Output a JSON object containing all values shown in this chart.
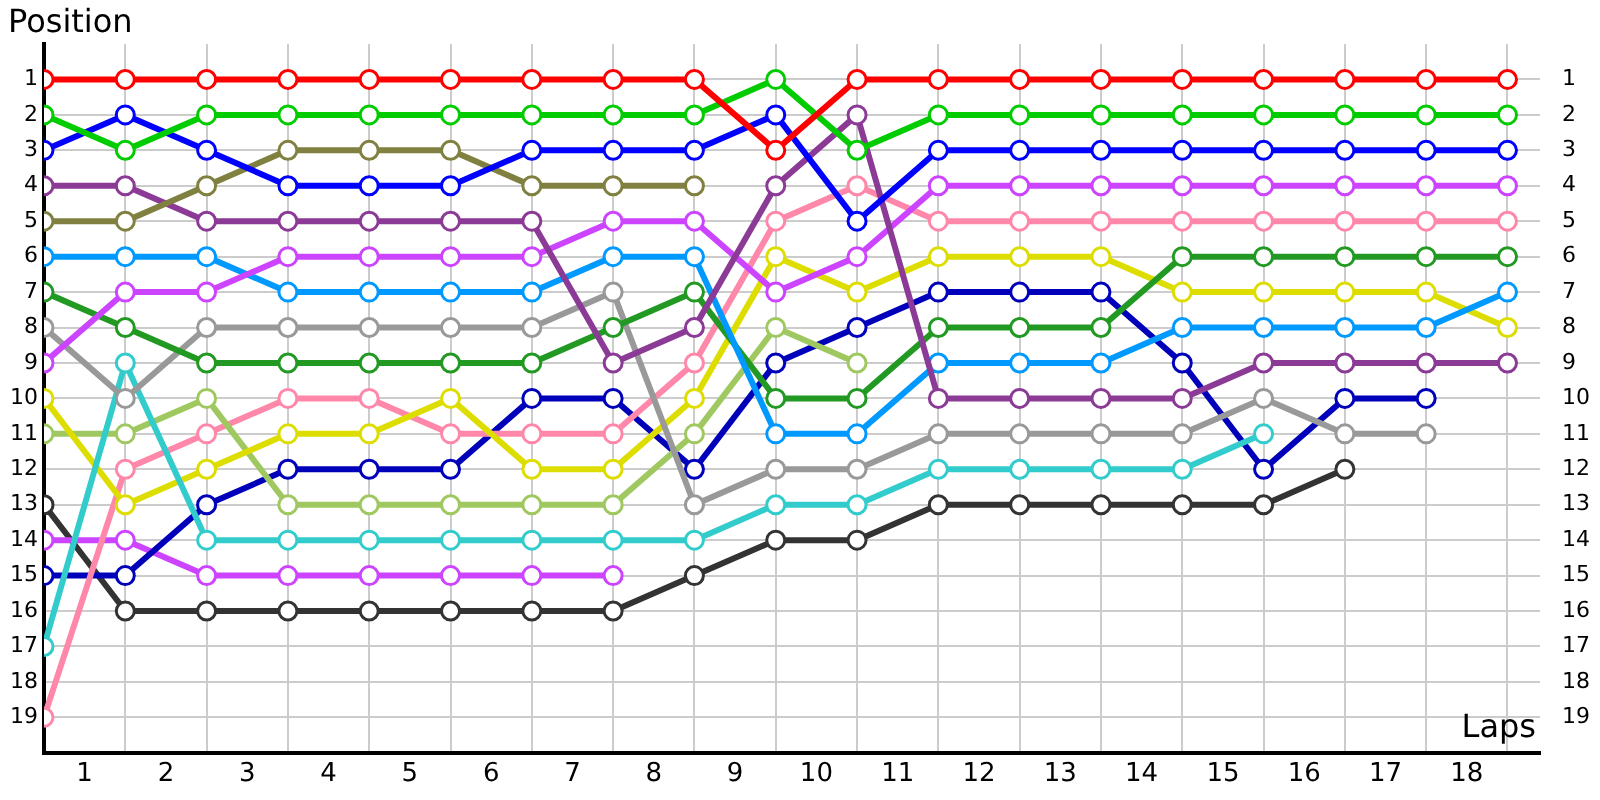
{
  "chart_data": {
    "type": "line",
    "xlabel": "Laps",
    "ylabel": "Position",
    "x": [
      0,
      1,
      2,
      3,
      4,
      5,
      6,
      7,
      8,
      9,
      10,
      11,
      12,
      13,
      14,
      15,
      16,
      17,
      18
    ],
    "xlim": [
      0,
      18.4
    ],
    "xticks": [
      {
        "value": 0,
        "label": null
      },
      {
        "value": 0.5,
        "label": "1"
      },
      {
        "value": 1,
        "label": null
      },
      {
        "value": 1.5,
        "label": "2"
      },
      {
        "value": 2,
        "label": null
      },
      {
        "value": 2.5,
        "label": "3"
      },
      {
        "value": 3,
        "label": null
      },
      {
        "value": 3.5,
        "label": "4"
      },
      {
        "value": 4,
        "label": null
      },
      {
        "value": 4.5,
        "label": "5"
      },
      {
        "value": 5,
        "label": null
      },
      {
        "value": 5.5,
        "label": "6"
      },
      {
        "value": 6,
        "label": null
      },
      {
        "value": 6.5,
        "label": "7"
      },
      {
        "value": 7,
        "label": null
      },
      {
        "value": 7.5,
        "label": "8"
      },
      {
        "value": 8,
        "label": null
      },
      {
        "value": 8.5,
        "label": "9"
      },
      {
        "value": 9,
        "label": null
      },
      {
        "value": 9.5,
        "label": "10"
      },
      {
        "value": 10,
        "label": null
      },
      {
        "value": 10.5,
        "label": "11"
      },
      {
        "value": 11,
        "label": null
      },
      {
        "value": 11.5,
        "label": "12"
      },
      {
        "value": 12,
        "label": null
      },
      {
        "value": 12.5,
        "label": "13"
      },
      {
        "value": 13,
        "label": null
      },
      {
        "value": 13.5,
        "label": "14"
      },
      {
        "value": 14,
        "label": null
      },
      {
        "value": 14.5,
        "label": "15"
      },
      {
        "value": 15,
        "label": null
      },
      {
        "value": 15.5,
        "label": "16"
      },
      {
        "value": 16,
        "label": null
      },
      {
        "value": 16.5,
        "label": "17"
      },
      {
        "value": 17,
        "label": null
      },
      {
        "value": 17.5,
        "label": "18"
      },
      {
        "value": 18,
        "label": null
      }
    ],
    "ylim": [
      20,
      0
    ],
    "yticks": [
      1,
      2,
      3,
      4,
      5,
      6,
      7,
      8,
      9,
      10,
      11,
      12,
      13,
      14,
      15,
      16,
      17,
      18,
      19
    ],
    "y2lim": [
      20,
      0
    ],
    "y2ticks": [
      1,
      2,
      3,
      4,
      5,
      6,
      7,
      8,
      9,
      10,
      11,
      12,
      13,
      14,
      15,
      16,
      17,
      18,
      19
    ],
    "grid": true,
    "marker": "circle",
    "line_style": "solid",
    "series": [
      {
        "color": "#ff0000",
        "values": [
          1,
          1,
          1,
          1,
          1,
          1,
          1,
          1,
          1,
          3,
          1,
          1,
          1,
          1,
          1,
          1,
          1,
          1,
          1
        ]
      },
      {
        "color": "#00cc00",
        "values": [
          2,
          3,
          2,
          2,
          2,
          2,
          2,
          2,
          2,
          1,
          3,
          2,
          2,
          2,
          2,
          2,
          2,
          2,
          2
        ]
      },
      {
        "color": "#0000ff",
        "values": [
          3,
          2,
          3,
          4,
          4,
          4,
          3,
          3,
          3,
          2,
          5,
          3,
          3,
          3,
          3,
          3,
          3,
          3,
          3
        ]
      },
      {
        "color": "#808040",
        "values": [
          5,
          5,
          4,
          3,
          3,
          3,
          4,
          4,
          4,
          null,
          null,
          null,
          null,
          null,
          null,
          null,
          null,
          null,
          null
        ]
      },
      {
        "color": "#8b3a96",
        "values": [
          4,
          4,
          5,
          5,
          5,
          5,
          5,
          9,
          8,
          4,
          2,
          10,
          10,
          10,
          10,
          9,
          9,
          9,
          9
        ]
      },
      {
        "color": "#cc44ff",
        "values": [
          9,
          7,
          7,
          6,
          6,
          6,
          6,
          5,
          5,
          7,
          6,
          4,
          4,
          4,
          4,
          4,
          4,
          4,
          4
        ]
      },
      {
        "color": "#0099ff",
        "values": [
          6,
          6,
          6,
          7,
          7,
          7,
          7,
          6,
          6,
          11,
          11,
          9,
          9,
          9,
          8,
          8,
          8,
          8,
          7
        ]
      },
      {
        "color": "#229922",
        "values": [
          7,
          8,
          9,
          9,
          9,
          9,
          9,
          8,
          7,
          10,
          10,
          8,
          8,
          8,
          6,
          6,
          6,
          6,
          6
        ]
      },
      {
        "color": "#999999",
        "values": [
          8,
          10,
          8,
          8,
          8,
          8,
          8,
          7,
          13,
          12,
          12,
          11,
          11,
          11,
          11,
          10,
          11,
          11,
          null
        ]
      },
      {
        "color": "#33cccc",
        "values": [
          17,
          9,
          14,
          14,
          14,
          14,
          14,
          14,
          14,
          13,
          13,
          12,
          12,
          12,
          12,
          11,
          null,
          null,
          null
        ]
      },
      {
        "color": "#dddd00",
        "values": [
          10,
          13,
          12,
          11,
          11,
          10,
          12,
          12,
          10,
          6,
          7,
          6,
          6,
          6,
          7,
          7,
          7,
          7,
          8
        ]
      },
      {
        "color": "#a0c860",
        "values": [
          11,
          11,
          10,
          13,
          13,
          13,
          13,
          13,
          11,
          8,
          9,
          null,
          null,
          null,
          null,
          null,
          null,
          null,
          null
        ]
      },
      {
        "color": "#ff88aa",
        "values": [
          19,
          12,
          11,
          10,
          10,
          11,
          11,
          11,
          9,
          5,
          4,
          5,
          5,
          5,
          5,
          5,
          5,
          5,
          5
        ]
      },
      {
        "color": "#0000bb",
        "values": [
          15,
          15,
          13,
          12,
          12,
          12,
          10,
          10,
          12,
          9,
          8,
          7,
          7,
          7,
          9,
          12,
          10,
          10,
          null
        ]
      },
      {
        "color": "#cc44ff",
        "values": [
          14,
          14,
          15,
          15,
          15,
          15,
          15,
          15,
          null,
          null,
          null,
          null,
          null,
          null,
          null,
          null,
          null,
          null,
          null
        ]
      },
      {
        "color": "#333333",
        "values": [
          13,
          16,
          16,
          16,
          16,
          16,
          16,
          16,
          15,
          14,
          14,
          13,
          13,
          13,
          13,
          13,
          12,
          null,
          null
        ]
      }
    ]
  }
}
